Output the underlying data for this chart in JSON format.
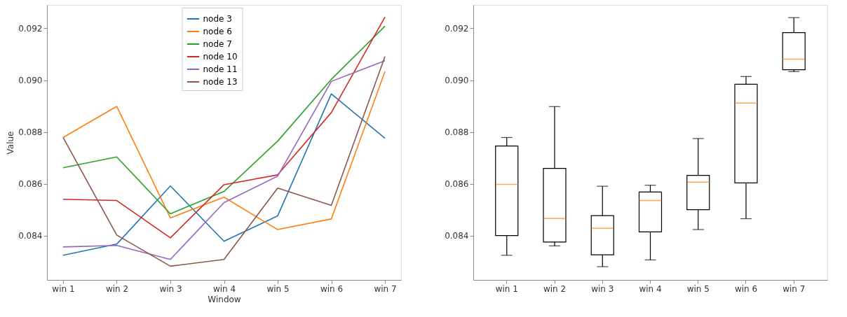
{
  "chart_data": [
    {
      "type": "line",
      "xlabel": "Window",
      "ylabel": "Value",
      "categories": [
        "win 1",
        "win 2",
        "win 3",
        "win 4",
        "win 5",
        "win 6",
        "win 7"
      ],
      "ylim": [
        0.0823,
        0.0929
      ],
      "yticks": [
        0.084,
        0.086,
        0.088,
        {
          "value": 0.09,
          "label": "0.090"
        },
        0.092
      ],
      "grid": false,
      "legend": "top",
      "series": [
        {
          "name": "node 3",
          "color": "#1f77b4",
          "values": [
            0.08325,
            0.08368,
            0.08592,
            0.08379,
            0.08477,
            0.08947,
            0.08776
          ]
        },
        {
          "name": "node 6",
          "color": "#ff7f0e",
          "values": [
            0.08779,
            0.08899,
            0.08469,
            0.08549,
            0.08424,
            0.08465,
            0.09033
          ]
        },
        {
          "name": "node 7",
          "color": "#2ca02c",
          "values": [
            0.08662,
            0.08704,
            0.08485,
            0.08571,
            0.08765,
            0.09003,
            0.09208
          ]
        },
        {
          "name": "node 10",
          "color": "#d62728",
          "values": [
            0.08541,
            0.08536,
            0.08392,
            0.08597,
            0.08635,
            0.08875,
            0.09243
          ]
        },
        {
          "name": "node 11",
          "color": "#9467bd",
          "values": [
            0.08357,
            0.08363,
            0.08309,
            0.08528,
            0.0863,
            0.08995,
            0.09075
          ]
        },
        {
          "name": "node 13",
          "color": "#8c564b",
          "values": [
            0.08779,
            0.08403,
            0.08283,
            0.08309,
            0.08584,
            0.08517,
            0.09091
          ]
        }
      ]
    },
    {
      "type": "box",
      "categories": [
        "win 1",
        "win 2",
        "win 3",
        "win 4",
        "win 5",
        "win 6",
        "win 7"
      ],
      "ylim": [
        0.0823,
        0.0929
      ],
      "yticks": [
        0.084,
        0.086,
        0.088,
        {
          "value": 0.09,
          "label": "0.090"
        },
        0.092
      ],
      "grid": false,
      "series": [
        {
          "color": "#ff7f0e",
          "boxes": [
            {
              "low": 0.08325,
              "q1": 0.08401,
              "median": 0.08598,
              "q3": 0.08746,
              "high": 0.08779
            },
            {
              "low": 0.08361,
              "q1": 0.08376,
              "median": 0.08467,
              "q3": 0.0866,
              "high": 0.08898
            },
            {
              "low": 0.08281,
              "q1": 0.08327,
              "median": 0.08429,
              "q3": 0.08478,
              "high": 0.08591
            },
            {
              "low": 0.08307,
              "q1": 0.08415,
              "median": 0.08536,
              "q3": 0.08569,
              "high": 0.08595
            },
            {
              "low": 0.08424,
              "q1": 0.08501,
              "median": 0.08607,
              "q3": 0.08633,
              "high": 0.08775
            },
            {
              "low": 0.08466,
              "q1": 0.08604,
              "median": 0.08912,
              "q3": 0.08984,
              "high": 0.09014
            },
            {
              "low": 0.09033,
              "q1": 0.0904,
              "median": 0.09081,
              "q3": 0.09183,
              "high": 0.09241
            }
          ]
        }
      ]
    }
  ]
}
